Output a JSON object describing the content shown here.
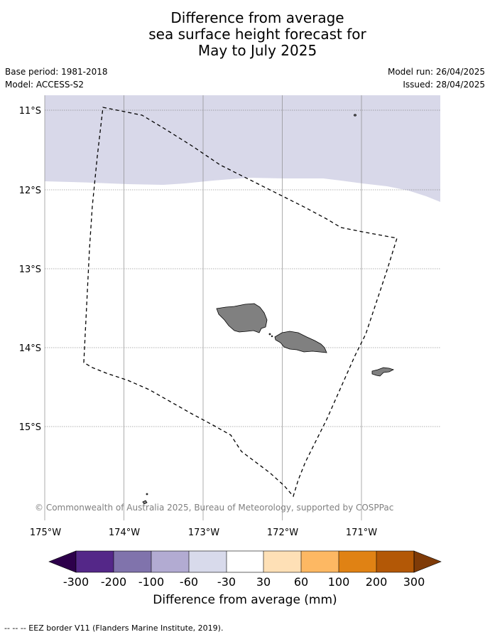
{
  "title": {
    "line1": "Difference from average",
    "line2": "sea surface height forecast for",
    "line3": "May to July 2025"
  },
  "meta": {
    "base_period": "Base period: 1981-2018",
    "model": "Model: ACCESS-S2",
    "model_run": "Model run: 26/04/2025",
    "issued": "Issued: 28/04/2025"
  },
  "map": {
    "lat_labels": [
      "11°S",
      "12°S",
      "13°S",
      "14°S",
      "15°S"
    ],
    "lon_labels": [
      "175°W",
      "174°W",
      "173°W",
      "172°W",
      "171°W"
    ],
    "land_color": "#808080",
    "shaded_band_color": "#d8d8e9",
    "eez_style": "dashed black line"
  },
  "copyright": "© Commonwealth of Australia 2025, Bureau of Meteorology, supported by COSPPac",
  "colorbar": {
    "label": "Difference from average (mm)",
    "ticks": [
      "-300",
      "-200",
      "-100",
      "-60",
      "-30",
      "30",
      "60",
      "100",
      "200",
      "300"
    ],
    "colors": {
      "below": "#2d004b",
      "bins": [
        "#542788",
        "#8073ac",
        "#b2abd2",
        "#d8daeb",
        "#ffffff",
        "#fee0b6",
        "#fdb863",
        "#e08214",
        "#b35806"
      ],
      "above": "#7f3b08"
    }
  },
  "footnote": "--  --  -- EEZ border V11 (Flanders Marine Institute, 2019)."
}
